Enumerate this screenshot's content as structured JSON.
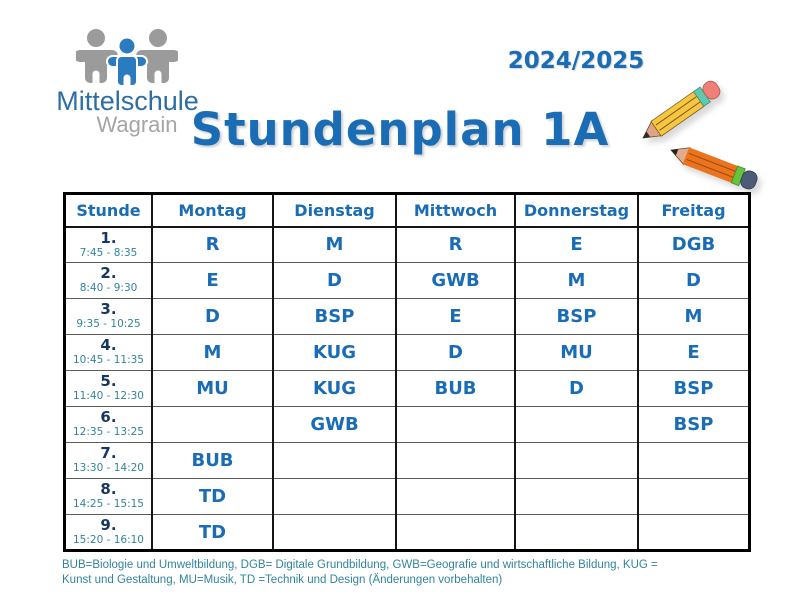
{
  "logo": {
    "school_name": "Mittelschule",
    "town": "Wagrain",
    "figure_blue": "#2b7bbf",
    "figure_gray": "#9b9b9b"
  },
  "header": {
    "school_year": "2024/2025",
    "title": "Stundenplan 1A",
    "accent_blue": "#1a6cb5"
  },
  "timetable": {
    "columns": [
      "Stunde",
      "Montag",
      "Dienstag",
      "Mittwoch",
      "Donnerstag",
      "Freitag"
    ],
    "rows": [
      {
        "period": "1.",
        "time": "7:45 - 8:35",
        "subjects": [
          "R",
          "M",
          "R",
          "E",
          "DGB"
        ]
      },
      {
        "period": "2.",
        "time": "8:40 - 9:30",
        "subjects": [
          "E",
          "D",
          "GWB",
          "M",
          "D"
        ]
      },
      {
        "period": "3.",
        "time": "9:35 - 10:25",
        "subjects": [
          "D",
          "BSP",
          "E",
          "BSP",
          "M"
        ]
      },
      {
        "period": "4.",
        "time": "10:45 - 11:35",
        "subjects": [
          "M",
          "KUG",
          "D",
          "MU",
          "E"
        ]
      },
      {
        "period": "5.",
        "time": "11:40 - 12:30",
        "subjects": [
          "MU",
          "KUG",
          "BUB",
          "D",
          "BSP"
        ]
      },
      {
        "period": "6.",
        "time": "12:35 - 13:25",
        "subjects": [
          "",
          "GWB",
          "",
          "",
          "BSP"
        ]
      },
      {
        "period": "7.",
        "time": "13:30 - 14:20",
        "subjects": [
          "BUB",
          "",
          "",
          "",
          ""
        ]
      },
      {
        "period": "8.",
        "time": "14:25 - 15:15",
        "subjects": [
          "TD",
          "",
          "",
          "",
          ""
        ]
      },
      {
        "period": "9.",
        "time": "15:20 - 16:10",
        "subjects": [
          "TD",
          "",
          "",
          "",
          ""
        ]
      }
    ],
    "period_color": "#17365d",
    "time_color": "#31849b",
    "subject_color": "#1a6cb5"
  },
  "footer": {
    "lines": [
      "BUB=Biologie und Umweltbildung, DGB= Digitale Grundbildung, GWB=Geografie und wirtschaftliche Bildung, KUG =",
      "Kunst und Gestaltung, MU=Musik, TD =Technik und Design (Änderungen vorbehalten)"
    ]
  }
}
